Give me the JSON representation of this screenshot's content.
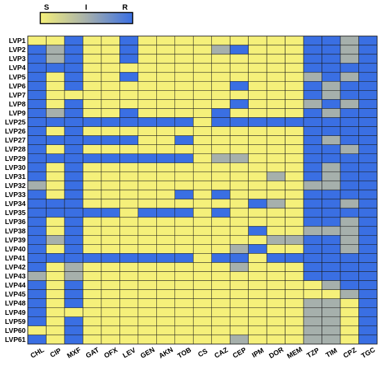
{
  "colors": {
    "S": "#f5f07a",
    "I": "#a6b0ac",
    "R": "#3a6fe3",
    "grid": "#1a1a1a"
  },
  "chart_data": {
    "type": "heatmap",
    "legend": {
      "placement": "top-left",
      "labels": [
        "S",
        "I",
        "R"
      ]
    },
    "columns": [
      "CHL",
      "CIP",
      "MXF",
      "GAT",
      "OFX",
      "LEV",
      "GEN",
      "AKN",
      "TOB",
      "CS",
      "CAZ",
      "CEP",
      "IPM",
      "DOR",
      "MEM",
      "TZP",
      "TIM",
      "CPZ",
      "TGC"
    ],
    "rows": [
      {
        "label": "LVP1",
        "values": [
          "S",
          "S",
          "R",
          "S",
          "S",
          "R",
          "S",
          "S",
          "S",
          "S",
          "S",
          "S",
          "S",
          "S",
          "S",
          "R",
          "R",
          "I",
          "R"
        ]
      },
      {
        "label": "LVP2",
        "values": [
          "R",
          "I",
          "R",
          "S",
          "S",
          "R",
          "S",
          "S",
          "S",
          "S",
          "I",
          "R",
          "S",
          "S",
          "S",
          "R",
          "R",
          "I",
          "R"
        ]
      },
      {
        "label": "LVP3",
        "values": [
          "R",
          "I",
          "R",
          "S",
          "S",
          "R",
          "S",
          "S",
          "S",
          "S",
          "S",
          "S",
          "S",
          "S",
          "S",
          "R",
          "R",
          "I",
          "R"
        ]
      },
      {
        "label": "LVP4",
        "values": [
          "R",
          "R",
          "R",
          "S",
          "S",
          "S",
          "S",
          "S",
          "S",
          "S",
          "S",
          "S",
          "S",
          "S",
          "S",
          "R",
          "R",
          "R",
          "R"
        ]
      },
      {
        "label": "LVP5",
        "values": [
          "R",
          "S",
          "R",
          "S",
          "S",
          "R",
          "S",
          "S",
          "S",
          "S",
          "S",
          "S",
          "S",
          "S",
          "S",
          "I",
          "R",
          "I",
          "R"
        ]
      },
      {
        "label": "LVP6",
        "values": [
          "R",
          "S",
          "R",
          "S",
          "S",
          "S",
          "S",
          "S",
          "S",
          "S",
          "S",
          "R",
          "S",
          "S",
          "S",
          "R",
          "I",
          "R",
          "R"
        ]
      },
      {
        "label": "LVP7",
        "values": [
          "R",
          "S",
          "S",
          "S",
          "S",
          "S",
          "S",
          "S",
          "S",
          "S",
          "S",
          "S",
          "S",
          "S",
          "S",
          "R",
          "I",
          "R",
          "R"
        ]
      },
      {
        "label": "LVP8",
        "values": [
          "R",
          "S",
          "R",
          "S",
          "S",
          "S",
          "S",
          "S",
          "S",
          "S",
          "S",
          "R",
          "S",
          "S",
          "S",
          "I",
          "R",
          "I",
          "R"
        ]
      },
      {
        "label": "LVP9",
        "values": [
          "R",
          "I",
          "R",
          "S",
          "S",
          "R",
          "S",
          "S",
          "S",
          "S",
          "R",
          "S",
          "S",
          "S",
          "S",
          "R",
          "I",
          "R",
          "R"
        ]
      },
      {
        "label": "LVP25",
        "values": [
          "R",
          "R",
          "R",
          "R",
          "R",
          "R",
          "R",
          "R",
          "R",
          "S",
          "R",
          "R",
          "R",
          "R",
          "R",
          "R",
          "R",
          "R",
          "R"
        ]
      },
      {
        "label": "LVP26",
        "values": [
          "R",
          "S",
          "R",
          "S",
          "S",
          "S",
          "S",
          "S",
          "S",
          "S",
          "S",
          "S",
          "S",
          "S",
          "S",
          "R",
          "R",
          "R",
          "R"
        ]
      },
      {
        "label": "LVP27",
        "values": [
          "R",
          "R",
          "R",
          "R",
          "R",
          "R",
          "S",
          "S",
          "R",
          "S",
          "S",
          "S",
          "S",
          "S",
          "S",
          "R",
          "I",
          "R",
          "R"
        ]
      },
      {
        "label": "LVP28",
        "values": [
          "R",
          "S",
          "R",
          "S",
          "S",
          "S",
          "S",
          "S",
          "S",
          "S",
          "S",
          "S",
          "S",
          "S",
          "S",
          "R",
          "R",
          "I",
          "R"
        ]
      },
      {
        "label": "LVP29",
        "values": [
          "R",
          "R",
          "R",
          "R",
          "R",
          "R",
          "R",
          "R",
          "R",
          "S",
          "I",
          "I",
          "S",
          "S",
          "S",
          "R",
          "R",
          "R",
          "R"
        ]
      },
      {
        "label": "LVP30",
        "values": [
          "R",
          "S",
          "R",
          "S",
          "S",
          "S",
          "S",
          "S",
          "S",
          "S",
          "S",
          "S",
          "S",
          "S",
          "S",
          "R",
          "I",
          "R",
          "R"
        ]
      },
      {
        "label": "LVP31",
        "values": [
          "R",
          "S",
          "R",
          "S",
          "S",
          "S",
          "S",
          "S",
          "S",
          "S",
          "S",
          "S",
          "S",
          "I",
          "S",
          "R",
          "I",
          "R",
          "R"
        ]
      },
      {
        "label": "LVP32",
        "values": [
          "I",
          "S",
          "R",
          "S",
          "S",
          "S",
          "S",
          "S",
          "S",
          "S",
          "S",
          "S",
          "S",
          "S",
          "S",
          "I",
          "I",
          "R",
          "R"
        ]
      },
      {
        "label": "LVP33",
        "values": [
          "R",
          "S",
          "R",
          "S",
          "S",
          "S",
          "S",
          "S",
          "R",
          "S",
          "R",
          "S",
          "S",
          "S",
          "S",
          "R",
          "R",
          "R",
          "R"
        ]
      },
      {
        "label": "LVP34",
        "values": [
          "R",
          "R",
          "R",
          "S",
          "S",
          "S",
          "S",
          "S",
          "S",
          "S",
          "S",
          "S",
          "R",
          "I",
          "S",
          "R",
          "R",
          "I",
          "R"
        ]
      },
      {
        "label": "LVP35",
        "values": [
          "R",
          "R",
          "R",
          "R",
          "R",
          "S",
          "R",
          "R",
          "R",
          "S",
          "R",
          "S",
          "S",
          "S",
          "S",
          "R",
          "R",
          "R",
          "R"
        ]
      },
      {
        "label": "LVP36",
        "values": [
          "R",
          "S",
          "R",
          "S",
          "S",
          "S",
          "S",
          "S",
          "S",
          "S",
          "S",
          "S",
          "S",
          "S",
          "S",
          "R",
          "R",
          "I",
          "R"
        ]
      },
      {
        "label": "LVP38",
        "values": [
          "R",
          "S",
          "R",
          "S",
          "S",
          "S",
          "S",
          "S",
          "S",
          "S",
          "S",
          "S",
          "R",
          "S",
          "S",
          "I",
          "I",
          "I",
          "R"
        ]
      },
      {
        "label": "LVP39",
        "values": [
          "R",
          "I",
          "R",
          "S",
          "S",
          "S",
          "S",
          "S",
          "S",
          "S",
          "S",
          "S",
          "S",
          "I",
          "I",
          "R",
          "R",
          "I",
          "R"
        ]
      },
      {
        "label": "LVP40",
        "values": [
          "R",
          "S",
          "R",
          "S",
          "S",
          "S",
          "S",
          "S",
          "S",
          "S",
          "S",
          "I",
          "R",
          "S",
          "S",
          "R",
          "R",
          "I",
          "R"
        ]
      },
      {
        "label": "LVP41",
        "values": [
          "R",
          "R",
          "R",
          "R",
          "R",
          "R",
          "R",
          "R",
          "R",
          "S",
          "R",
          "R",
          "S",
          "R",
          "R",
          "R",
          "R",
          "R",
          "R"
        ]
      },
      {
        "label": "LVP42",
        "values": [
          "R",
          "S",
          "I",
          "S",
          "S",
          "S",
          "S",
          "S",
          "S",
          "S",
          "S",
          "I",
          "S",
          "S",
          "S",
          "R",
          "R",
          "R",
          "R"
        ]
      },
      {
        "label": "LVP43",
        "values": [
          "I",
          "S",
          "I",
          "S",
          "S",
          "S",
          "S",
          "S",
          "S",
          "S",
          "S",
          "S",
          "S",
          "S",
          "S",
          "R",
          "R",
          "R",
          "R"
        ]
      },
      {
        "label": "LVP44",
        "values": [
          "R",
          "S",
          "R",
          "S",
          "S",
          "S",
          "S",
          "S",
          "S",
          "S",
          "S",
          "S",
          "S",
          "S",
          "S",
          "S",
          "I",
          "R",
          "R"
        ]
      },
      {
        "label": "LVP45",
        "values": [
          "R",
          "S",
          "R",
          "S",
          "S",
          "S",
          "S",
          "S",
          "S",
          "S",
          "S",
          "S",
          "S",
          "S",
          "S",
          "S",
          "S",
          "I",
          "R"
        ]
      },
      {
        "label": "LVP48",
        "values": [
          "R",
          "S",
          "R",
          "S",
          "S",
          "S",
          "S",
          "S",
          "S",
          "S",
          "S",
          "S",
          "S",
          "S",
          "S",
          "I",
          "I",
          "S",
          "R"
        ]
      },
      {
        "label": "LVP49",
        "values": [
          "R",
          "S",
          "S",
          "S",
          "S",
          "S",
          "S",
          "S",
          "S",
          "S",
          "S",
          "S",
          "S",
          "S",
          "S",
          "I",
          "I",
          "S",
          "R"
        ]
      },
      {
        "label": "LVP59",
        "values": [
          "R",
          "S",
          "R",
          "S",
          "S",
          "S",
          "S",
          "S",
          "S",
          "S",
          "S",
          "S",
          "S",
          "S",
          "S",
          "I",
          "I",
          "S",
          "R"
        ]
      },
      {
        "label": "LVP60",
        "values": [
          "S",
          "S",
          "R",
          "S",
          "S",
          "S",
          "S",
          "S",
          "S",
          "S",
          "S",
          "S",
          "S",
          "S",
          "S",
          "I",
          "I",
          "S",
          "R"
        ]
      },
      {
        "label": "LVP61",
        "values": [
          "R",
          "S",
          "R",
          "S",
          "S",
          "S",
          "S",
          "S",
          "S",
          "S",
          "S",
          "I",
          "S",
          "S",
          "S",
          "I",
          "I",
          "S",
          "R"
        ]
      }
    ]
  }
}
